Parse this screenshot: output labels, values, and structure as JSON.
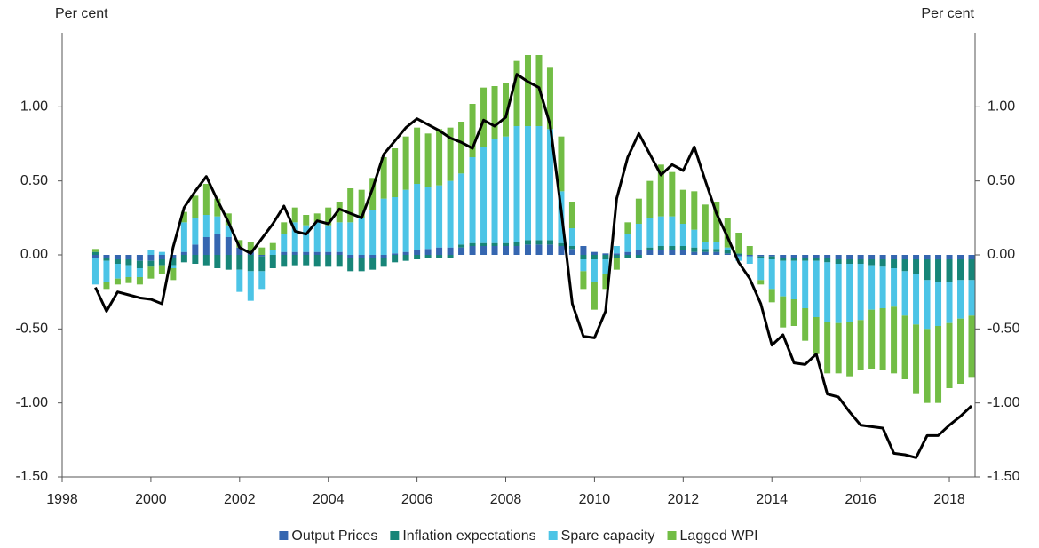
{
  "chart_data": {
    "type": "bar",
    "y_label": "Per cent",
    "y2_label": "Per cent",
    "xlim": [
      1998,
      2018.58
    ],
    "xticks": [
      1998,
      2000,
      2002,
      2004,
      2006,
      2008,
      2010,
      2012,
      2014,
      2016,
      2018
    ],
    "ylim": [
      -1.5,
      1.5
    ],
    "yticks": [
      {
        "value": -1.5,
        "label": "-1.50"
      },
      {
        "value": -1,
        "label": "-1.00"
      },
      {
        "value": -0.5,
        "label": "-0.50"
      },
      {
        "value": 0,
        "label": "0.00"
      },
      {
        "value": 0.5,
        "label": "0.50"
      },
      {
        "value": 1,
        "label": "1.00"
      }
    ],
    "y2lim": [
      -1.5,
      1.5
    ],
    "y2ticks": [
      {
        "value": -1.5,
        "label": "-1.50"
      },
      {
        "value": -1,
        "label": "-1.00"
      },
      {
        "value": -0.5,
        "label": "-0.50"
      },
      {
        "value": 0,
        "label": "0.00"
      },
      {
        "value": 0.5,
        "label": "0.50"
      },
      {
        "value": 1,
        "label": "1.00"
      }
    ],
    "grid": false,
    "legend": "bottom",
    "x": [
      1998.75,
      1999,
      1999.25,
      1999.5,
      1999.75,
      2000,
      2000.25,
      2000.5,
      2000.75,
      2001,
      2001.25,
      2001.5,
      2001.75,
      2002,
      2002.25,
      2002.5,
      2002.75,
      2003,
      2003.25,
      2003.5,
      2003.75,
      2004,
      2004.25,
      2004.5,
      2004.75,
      2005,
      2005.25,
      2005.5,
      2005.75,
      2006,
      2006.25,
      2006.5,
      2006.75,
      2007,
      2007.25,
      2007.5,
      2007.75,
      2008,
      2008.25,
      2008.5,
      2008.75,
      2009,
      2009.25,
      2009.5,
      2009.75,
      2010,
      2010.25,
      2010.5,
      2010.75,
      2011,
      2011.25,
      2011.5,
      2011.75,
      2012,
      2012.25,
      2012.5,
      2012.75,
      2013,
      2013.25,
      2013.5,
      2013.75,
      2014,
      2014.25,
      2014.5,
      2014.75,
      2015,
      2015.25,
      2015.5,
      2015.75,
      2016,
      2016.25,
      2016.5,
      2016.75,
      2017,
      2017.25,
      2017.5,
      2017.75,
      2018,
      2018.25,
      2018.5
    ],
    "series": [
      {
        "name": "Output Prices",
        "color": "#3566b0",
        "values": [
          -0.02,
          -0.02,
          -0.03,
          -0.03,
          -0.04,
          -0.04,
          -0.03,
          -0.02,
          0.02,
          0.07,
          0.12,
          0.14,
          0.12,
          0.05,
          0.02,
          -0.01,
          0.0,
          0.02,
          0.02,
          0.02,
          0.02,
          0.02,
          0.02,
          -0.02,
          -0.02,
          -0.02,
          -0.02,
          0.01,
          0.02,
          0.03,
          0.04,
          0.05,
          0.05,
          0.05,
          0.06,
          0.06,
          0.06,
          0.06,
          0.06,
          0.07,
          0.07,
          0.07,
          0.06,
          0.04,
          0.06,
          0.02,
          0.01,
          0.01,
          0.02,
          0.03,
          0.03,
          0.03,
          0.03,
          0.03,
          0.02,
          0.02,
          0.02,
          0.01,
          -0.01,
          -0.01,
          -0.01,
          -0.01,
          -0.02,
          -0.02,
          -0.02,
          -0.02,
          -0.02,
          -0.03,
          -0.03,
          -0.03,
          -0.03,
          -0.03,
          -0.03,
          -0.03,
          -0.03,
          -0.03,
          -0.03,
          -0.03,
          -0.03,
          -0.03
        ]
      },
      {
        "name": "Inflation expectations",
        "color": "#178578",
        "values": [
          0.02,
          -0.02,
          -0.03,
          -0.04,
          -0.05,
          -0.04,
          -0.04,
          -0.05,
          -0.05,
          -0.06,
          -0.07,
          -0.09,
          -0.1,
          -0.1,
          -0.11,
          -0.1,
          -0.09,
          -0.08,
          -0.07,
          -0.07,
          -0.08,
          -0.08,
          -0.08,
          -0.09,
          -0.09,
          -0.08,
          -0.06,
          -0.05,
          -0.04,
          -0.03,
          -0.02,
          -0.02,
          -0.02,
          0.02,
          0.02,
          0.02,
          0.02,
          0.02,
          0.03,
          0.03,
          0.03,
          0.03,
          0.02,
          0.02,
          -0.03,
          -0.03,
          -0.03,
          -0.02,
          -0.02,
          -0.02,
          0.02,
          0.03,
          0.03,
          0.03,
          0.03,
          0.02,
          0.02,
          0.02,
          0.01,
          0.0,
          -0.01,
          -0.02,
          -0.02,
          -0.02,
          -0.02,
          -0.02,
          -0.03,
          -0.03,
          -0.03,
          -0.03,
          -0.04,
          -0.05,
          -0.06,
          -0.08,
          -0.1,
          -0.14,
          -0.15,
          -0.15,
          -0.14,
          -0.14
        ]
      },
      {
        "name": "Spare capacity",
        "color": "#4cc4e6",
        "values": [
          -0.18,
          -0.14,
          -0.1,
          -0.08,
          -0.06,
          0.03,
          0.02,
          -0.02,
          0.2,
          0.18,
          0.15,
          0.12,
          0.08,
          -0.15,
          -0.2,
          -0.12,
          0.03,
          0.12,
          0.2,
          0.18,
          0.2,
          0.18,
          0.2,
          0.22,
          0.25,
          0.3,
          0.38,
          0.38,
          0.42,
          0.45,
          0.42,
          0.42,
          0.45,
          0.48,
          0.58,
          0.65,
          0.7,
          0.72,
          0.78,
          0.77,
          0.77,
          0.75,
          0.35,
          0.12,
          -0.08,
          -0.15,
          -0.1,
          0.05,
          0.12,
          0.18,
          0.2,
          0.2,
          0.2,
          0.15,
          0.12,
          0.05,
          0.05,
          0.02,
          -0.03,
          -0.05,
          -0.15,
          -0.2,
          -0.24,
          -0.26,
          -0.32,
          -0.38,
          -0.4,
          -0.4,
          -0.39,
          -0.38,
          -0.3,
          -0.28,
          -0.26,
          -0.3,
          -0.34,
          -0.33,
          -0.3,
          -0.28,
          -0.26,
          -0.24
        ]
      },
      {
        "name": "Lagged WPI",
        "color": "#72bd45",
        "values": [
          0.02,
          -0.05,
          -0.04,
          -0.04,
          -0.05,
          -0.08,
          -0.06,
          -0.08,
          0.07,
          0.15,
          0.21,
          0.12,
          0.08,
          0.05,
          0.07,
          0.05,
          0.05,
          0.08,
          0.1,
          0.07,
          0.06,
          0.12,
          0.14,
          0.23,
          0.19,
          0.22,
          0.28,
          0.33,
          0.36,
          0.38,
          0.36,
          0.38,
          0.36,
          0.35,
          0.36,
          0.4,
          0.36,
          0.36,
          0.44,
          0.48,
          0.48,
          0.42,
          0.37,
          0.18,
          -0.12,
          -0.19,
          -0.1,
          -0.08,
          0.08,
          0.17,
          0.25,
          0.35,
          0.3,
          0.23,
          0.26,
          0.25,
          0.27,
          0.2,
          0.14,
          0.06,
          -0.03,
          -0.09,
          -0.21,
          -0.18,
          -0.22,
          -0.25,
          -0.35,
          -0.34,
          -0.37,
          -0.34,
          -0.4,
          -0.42,
          -0.45,
          -0.43,
          -0.47,
          -0.5,
          -0.52,
          -0.44,
          -0.44,
          -0.42
        ]
      },
      {
        "type": "line",
        "color": "#000000",
        "values": [
          -0.22,
          -0.38,
          -0.25,
          -0.27,
          -0.29,
          -0.3,
          -0.33,
          0.05,
          0.32,
          0.43,
          0.53,
          0.37,
          0.22,
          0.05,
          0.01,
          0.11,
          0.21,
          0.33,
          0.16,
          0.14,
          0.23,
          0.21,
          0.31,
          0.28,
          0.25,
          0.45,
          0.68,
          0.77,
          0.86,
          0.92,
          0.88,
          0.84,
          0.79,
          0.76,
          0.72,
          0.91,
          0.87,
          0.93,
          1.22,
          1.17,
          1.13,
          0.88,
          0.3,
          -0.33,
          -0.55,
          -0.56,
          -0.38,
          0.38,
          0.66,
          0.82,
          0.68,
          0.54,
          0.61,
          0.57,
          0.73,
          0.5,
          0.28,
          0.12,
          -0.05,
          -0.16,
          -0.33,
          -0.61,
          -0.54,
          -0.73,
          -0.74,
          -0.67,
          -0.94,
          -0.96,
          -1.06,
          -1.15,
          -1.16,
          -1.17,
          -1.34,
          -1.35,
          -1.37,
          -1.22,
          -1.22,
          -1.15,
          -1.09,
          -1.02
        ]
      }
    ]
  }
}
